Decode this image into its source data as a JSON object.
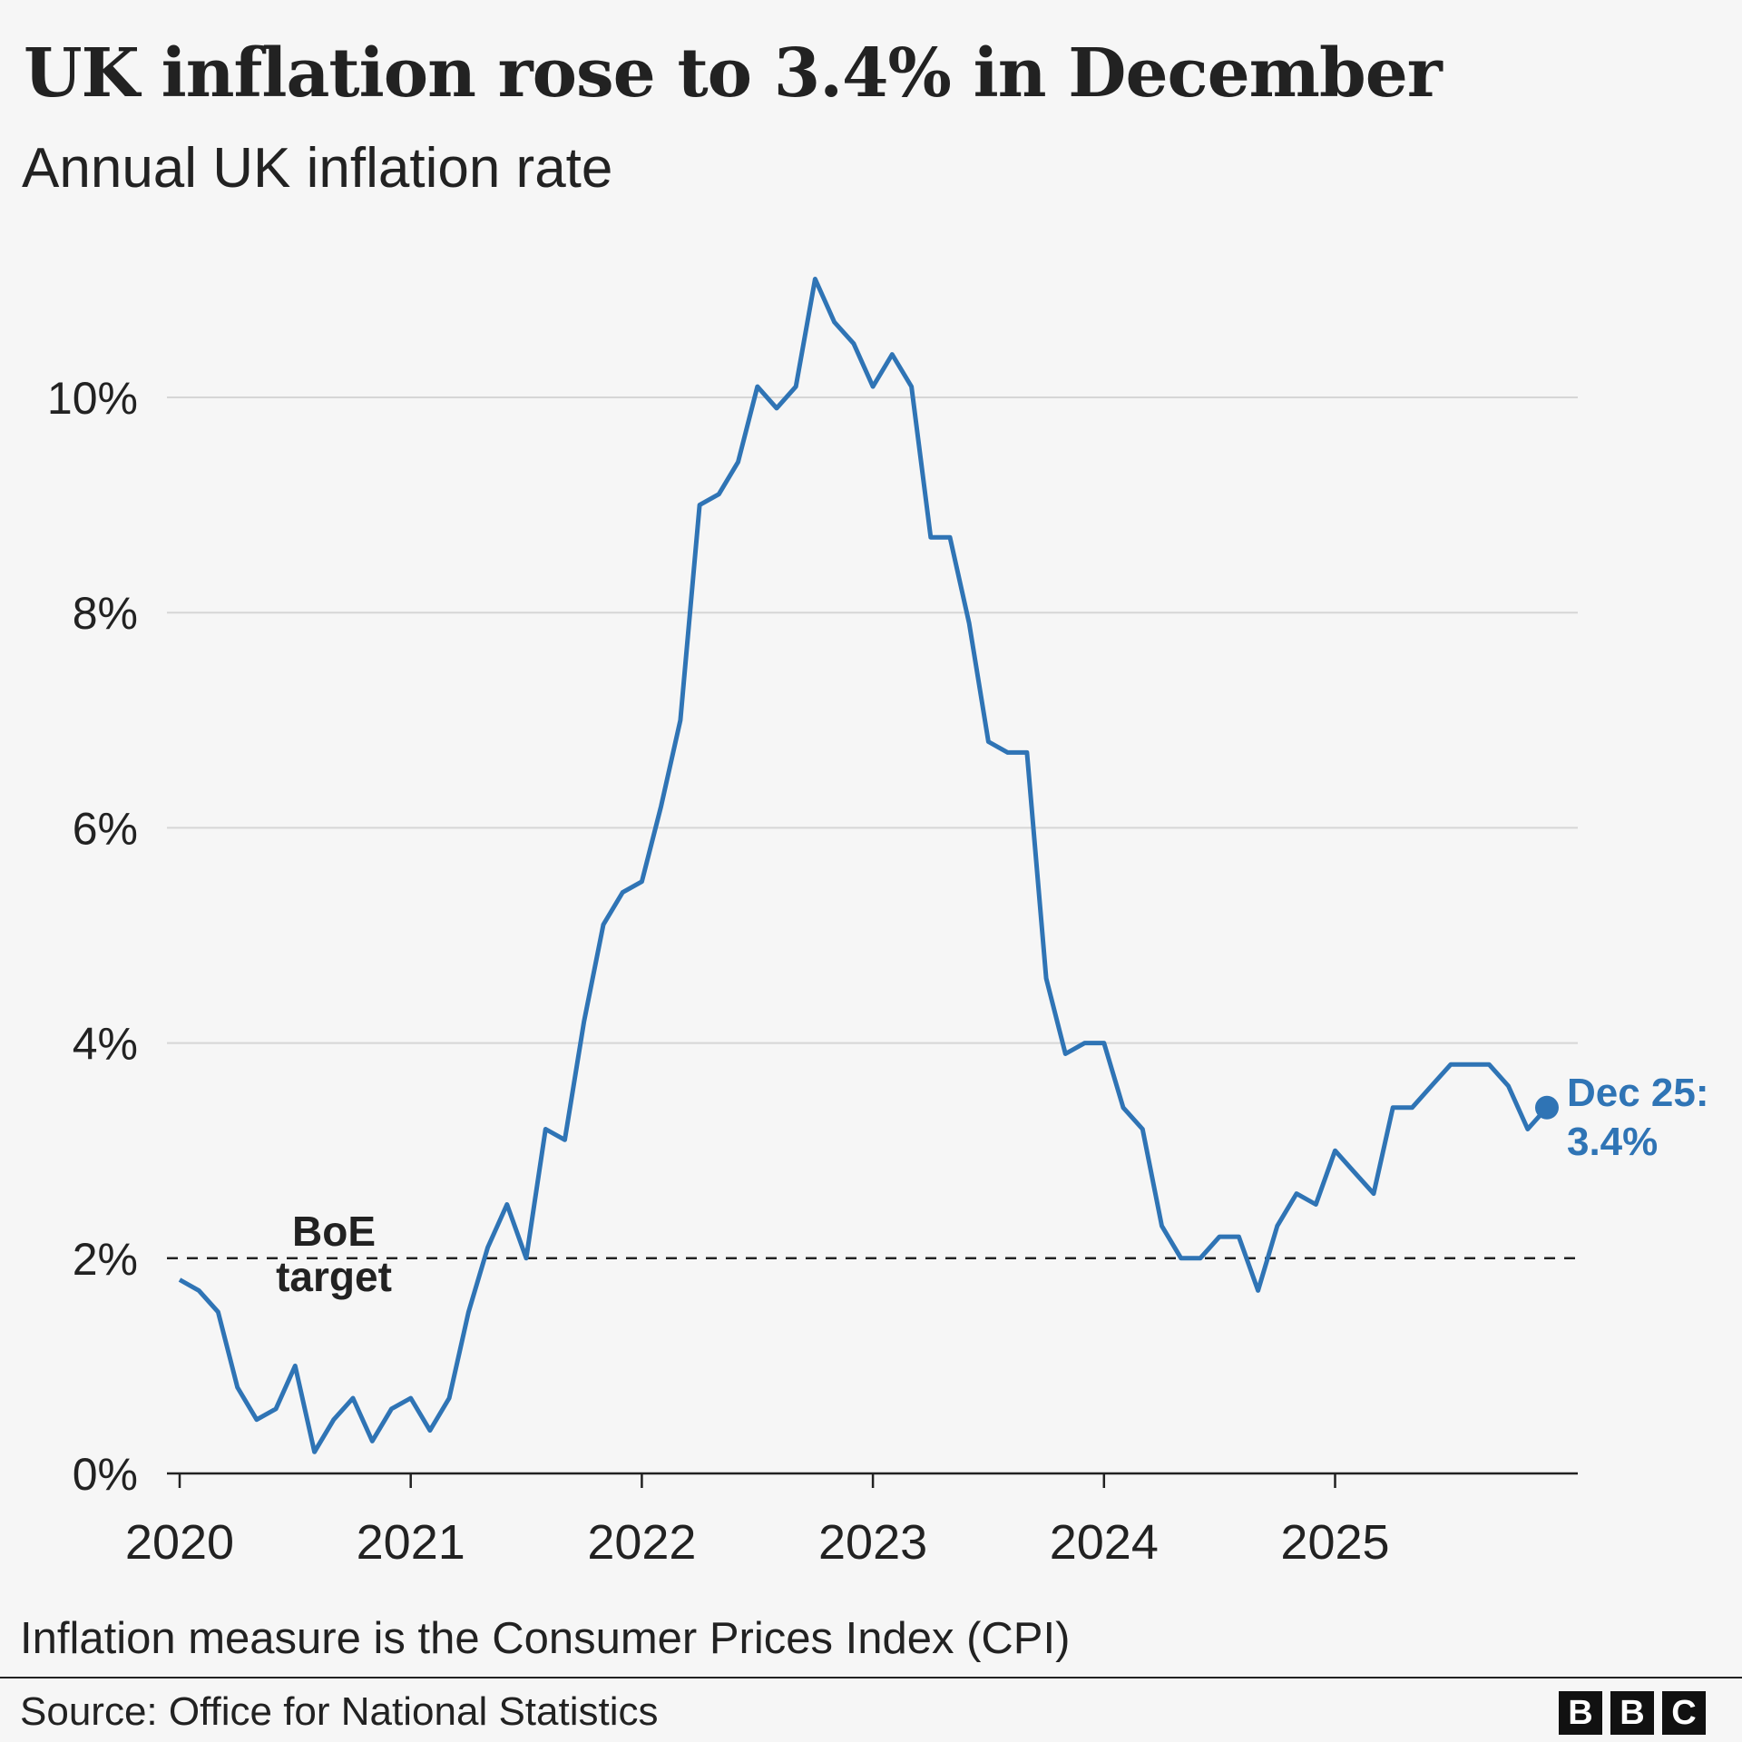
{
  "header": {
    "title": "UK inflation rose to 3.4% in December",
    "subtitle": "Annual UK inflation rate"
  },
  "footer": {
    "note": "Inflation measure is the Consumer Prices Index (CPI)",
    "source": "Source: Office for National Statistics",
    "logo": "BBC"
  },
  "chart_data": {
    "type": "line",
    "title": "UK inflation rose to 3.4% in December",
    "subtitle": "Annual UK inflation rate",
    "xlabel": "",
    "ylabel": "",
    "ylim": [
      0,
      11.5
    ],
    "grid": true,
    "yticks": [
      0,
      2,
      4,
      6,
      8,
      10
    ],
    "ytick_labels": [
      "0%",
      "2%",
      "4%",
      "6%",
      "8%",
      "10%"
    ],
    "xtick_labels": [
      "2020",
      "2021",
      "2022",
      "2023",
      "2024",
      "2025"
    ],
    "x_start": "2020-01",
    "x_end": "2025-12",
    "x_frequency": "monthly",
    "color": "#2f74b5",
    "values": [
      1.8,
      1.7,
      1.5,
      0.8,
      0.5,
      0.6,
      1.0,
      0.2,
      0.5,
      0.7,
      0.3,
      0.6,
      0.7,
      0.4,
      0.7,
      1.5,
      2.1,
      2.5,
      2.0,
      3.2,
      3.1,
      4.2,
      5.1,
      5.4,
      5.5,
      6.2,
      7.0,
      9.0,
      9.1,
      9.4,
      10.1,
      9.9,
      10.1,
      11.1,
      10.7,
      10.5,
      10.1,
      10.4,
      10.1,
      8.7,
      8.7,
      7.9,
      6.8,
      6.7,
      6.7,
      4.6,
      3.9,
      4.0,
      4.0,
      3.4,
      3.2,
      2.3,
      2.0,
      2.0,
      2.2,
      2.2,
      1.7,
      2.3,
      2.6,
      2.5,
      3.0,
      2.8,
      2.6,
      3.4,
      3.4,
      3.6,
      3.8,
      3.8,
      3.8,
      3.6,
      3.2,
      3.4
    ],
    "reference_line": {
      "value": 2,
      "label_line1": "BoE",
      "label_line2": "target",
      "style": "dashed",
      "color": "#222222"
    },
    "end_label": {
      "line1": "Dec 25:",
      "line2": "3.4%"
    }
  }
}
